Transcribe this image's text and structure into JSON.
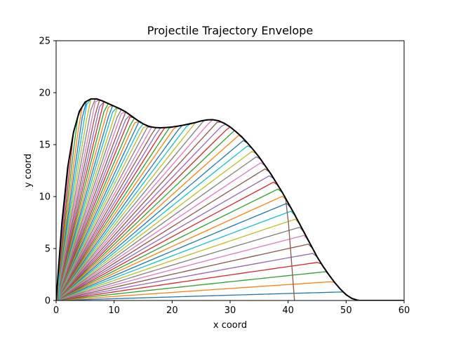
{
  "chart_data": {
    "type": "line",
    "title": "Projectile Trajectory Envelope",
    "xlabel": "x coord",
    "ylabel": "y coord",
    "xlim": [
      0,
      60
    ],
    "ylim": [
      0,
      25
    ],
    "xticks": [
      "0",
      "10",
      "20",
      "30",
      "40",
      "50",
      "60"
    ],
    "yticks": [
      "0",
      "5",
      "10",
      "15",
      "20",
      "25"
    ],
    "grid": false,
    "legend": "none",
    "family": {
      "description_of_series": "Many projectile trajectories launched from the origin at evenly spaced angles, bounded by a black envelope curve",
      "angle_start_deg": 1,
      "angle_end_deg": 88,
      "angle_step_deg": 1.25
    },
    "envelope": {
      "color": "#000000",
      "x": [
        0,
        1,
        2,
        3,
        4,
        5,
        6,
        7,
        8,
        9,
        10,
        11,
        12,
        13,
        14,
        15,
        16,
        17,
        18,
        19,
        20,
        21,
        22,
        23,
        24,
        25,
        26,
        27,
        28,
        29,
        30,
        31,
        32,
        33,
        34,
        35,
        36,
        37,
        38,
        39,
        40,
        41,
        42,
        43,
        44,
        45,
        46,
        47,
        48,
        49,
        50,
        51,
        52,
        52.2
      ],
      "y": [
        0,
        7.5,
        12.8,
        16.2,
        18.2,
        19.1,
        19.4,
        19.4,
        19.2,
        18.95,
        18.7,
        18.45,
        18.15,
        17.75,
        17.35,
        17.0,
        16.75,
        16.65,
        16.62,
        16.65,
        16.7,
        16.78,
        16.88,
        17.0,
        17.12,
        17.28,
        17.38,
        17.4,
        17.3,
        17.05,
        16.7,
        16.25,
        15.75,
        15.15,
        14.5,
        13.8,
        13.0,
        12.2,
        11.3,
        10.4,
        9.4,
        8.4,
        7.35,
        6.3,
        5.25,
        4.2,
        3.3,
        2.5,
        1.75,
        1.1,
        0.55,
        0.2,
        0.02,
        0
      ]
    },
    "palette": [
      "#1f77b4",
      "#ff7f0e",
      "#2ca02c",
      "#d62728",
      "#9467bd",
      "#8c564b",
      "#e377c2",
      "#7f7f7f",
      "#bcbd22",
      "#17becf"
    ]
  }
}
